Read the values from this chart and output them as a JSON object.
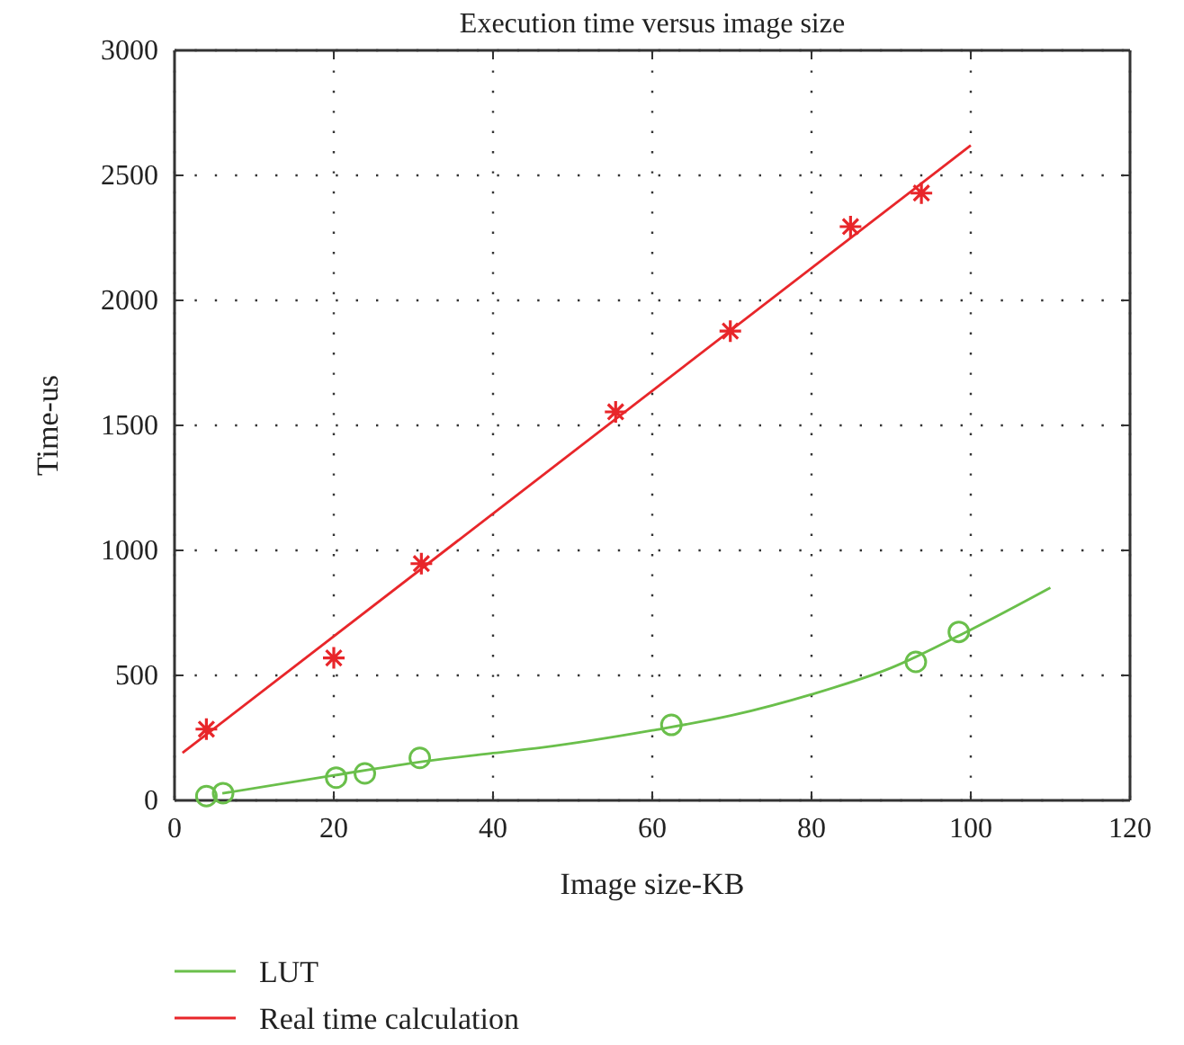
{
  "chart_data": {
    "type": "line",
    "title": "Execution time versus image size",
    "xlabel": "Image size-KB",
    "ylabel": "Time-us",
    "xlim": [
      0,
      120
    ],
    "xticks": [
      0,
      20,
      40,
      60,
      80,
      100,
      120
    ],
    "ylim": [
      0,
      3000
    ],
    "yticks": [
      0,
      500,
      1000,
      1500,
      2000,
      2500,
      3000
    ],
    "grid": true,
    "legend": "bottom",
    "series": [
      {
        "name": "LUT",
        "color": "#6abf4b",
        "marker": "none",
        "x": [
          6,
          20,
          30,
          40,
          46,
          60,
          70,
          80,
          90,
          100,
          110
        ],
        "values": [
          28,
          100,
          150,
          189,
          211,
          280,
          340,
          424,
          530,
          683,
          851
        ]
      },
      {
        "name": "Real time calculation",
        "color": "#e8262a",
        "marker": "none",
        "x": [
          1,
          100
        ],
        "values": [
          190,
          2620
        ]
      },
      {
        "type": "scatter",
        "color": "#6abf4b",
        "marker": "circle",
        "x": [
          4,
          6.1,
          20.3,
          23.9,
          30.8,
          62.4,
          93.1,
          98.5
        ],
        "values": [
          17,
          29,
          91,
          108,
          170,
          302,
          554,
          674
        ]
      },
      {
        "type": "scatter",
        "color": "#e8262a",
        "marker": "cross",
        "x": [
          4,
          20,
          31,
          55.4,
          69.8,
          84.9,
          93.8
        ],
        "values": [
          285,
          570,
          947,
          1554,
          1877,
          2295,
          2429
        ]
      }
    ]
  }
}
